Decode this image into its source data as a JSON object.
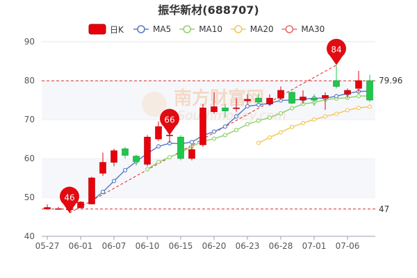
{
  "chart_data": {
    "type": "candlestick",
    "title_name": "振华新材",
    "title_code": "(688707)",
    "ylim": [
      40,
      90
    ],
    "yticks": [
      40,
      50,
      60,
      70,
      80,
      90
    ],
    "x_tick_labels": [
      "05-27",
      "06-01",
      "06-07",
      "06-10",
      "06-15",
      "06-20",
      "06-23",
      "06-28",
      "07-01",
      "07-06"
    ],
    "legend": [
      {
        "name": "日K",
        "color": "#e8000b"
      },
      {
        "name": "MA5",
        "color": "#5b7dc4"
      },
      {
        "name": "MA10",
        "color": "#91d26a"
      },
      {
        "name": "MA20",
        "color": "#f5c65a"
      },
      {
        "name": "MA30",
        "color": "#ef6b6b"
      }
    ],
    "candles": [
      {
        "date": "05-27",
        "open": 47.0,
        "close": 47.4,
        "high": 48.2,
        "low": 46.9
      },
      {
        "date": "05-30",
        "open": 47.0,
        "close": 47.1,
        "high": 47.6,
        "low": 46.9
      },
      {
        "date": "05-31",
        "open": 46.8,
        "close": 47.0,
        "high": 47.1,
        "low": 46.0
      },
      {
        "date": "06-01",
        "open": 47.3,
        "close": 48.8,
        "high": 49.0,
        "low": 47.2
      },
      {
        "date": "06-02",
        "open": 48.3,
        "close": 55.0,
        "high": 55.3,
        "low": 48.2
      },
      {
        "date": "06-06",
        "open": 56.2,
        "close": 59.0,
        "high": 61.5,
        "low": 55.5
      },
      {
        "date": "06-07",
        "open": 59.0,
        "close": 62.0,
        "high": 62.5,
        "low": 58.0
      },
      {
        "date": "06-08",
        "open": 62.5,
        "close": 60.8,
        "high": 63.0,
        "low": 60.0
      },
      {
        "date": "06-09",
        "open": 60.6,
        "close": 59.2,
        "high": 61.0,
        "low": 58.2
      },
      {
        "date": "06-10",
        "open": 58.5,
        "close": 65.5,
        "high": 66.0,
        "low": 58.0
      },
      {
        "date": "06-13",
        "open": 65.0,
        "close": 68.2,
        "high": 69.5,
        "low": 64.5
      },
      {
        "date": "06-14",
        "open": 66.0,
        "close": 66.0,
        "high": 66.5,
        "low": 64.0
      },
      {
        "date": "06-15",
        "open": 65.5,
        "close": 60.0,
        "high": 66.0,
        "low": 59.5
      },
      {
        "date": "06-16",
        "open": 60.0,
        "close": 62.3,
        "high": 63.5,
        "low": 59.5
      },
      {
        "date": "06-17",
        "open": 63.5,
        "close": 73.0,
        "high": 74.0,
        "low": 63.0
      },
      {
        "date": "06-20",
        "open": 72.0,
        "close": 73.3,
        "high": 77.0,
        "low": 71.5
      },
      {
        "date": "06-21",
        "open": 73.0,
        "close": 72.2,
        "high": 74.0,
        "low": 70.5
      },
      {
        "date": "06-22",
        "open": 72.8,
        "close": 73.0,
        "high": 75.5,
        "low": 72.0
      },
      {
        "date": "06-23",
        "open": 74.8,
        "close": 75.2,
        "high": 76.5,
        "low": 74.0
      },
      {
        "date": "06-24",
        "open": 75.5,
        "close": 74.5,
        "high": 76.5,
        "low": 74.0
      },
      {
        "date": "06-27",
        "open": 74.0,
        "close": 75.5,
        "high": 76.5,
        "low": 73.5
      },
      {
        "date": "06-28",
        "open": 75.5,
        "close": 77.5,
        "high": 78.5,
        "low": 75.0
      },
      {
        "date": "06-29",
        "open": 77.0,
        "close": 74.2,
        "high": 77.2,
        "low": 74.0
      },
      {
        "date": "06-30",
        "open": 75.0,
        "close": 75.8,
        "high": 77.5,
        "low": 74.0
      },
      {
        "date": "07-01",
        "open": 75.5,
        "close": 75.0,
        "high": 76.5,
        "low": 73.5
      },
      {
        "date": "07-04",
        "open": 75.5,
        "close": 76.2,
        "high": 77.0,
        "low": 72.5
      },
      {
        "date": "07-05",
        "open": 80.0,
        "close": 78.5,
        "high": 84.0,
        "low": 78.0
      },
      {
        "date": "07-06",
        "open": 76.5,
        "close": 77.5,
        "high": 78.0,
        "low": 75.5
      },
      {
        "date": "07-07",
        "open": 78.0,
        "close": 80.0,
        "high": 82.5,
        "low": 77.0
      },
      {
        "date": "07-08",
        "open": 80.0,
        "close": 75.0,
        "high": 81.5,
        "low": 74.5
      }
    ],
    "ma5": [
      null,
      null,
      null,
      null,
      49.1,
      51.4,
      54.2,
      57.0,
      59.2,
      61.3,
      63.1,
      63.9,
      63.8,
      64.2,
      65.9,
      66.9,
      68.2,
      70.8,
      73.4,
      73.8,
      74.2,
      74.9,
      75.0,
      75.2,
      75.5,
      75.5,
      76.0,
      76.7,
      77.2,
      77.3
    ],
    "ma10": [
      null,
      null,
      null,
      null,
      null,
      null,
      null,
      null,
      null,
      57.2,
      59.1,
      60.3,
      61.5,
      63.1,
      64.4,
      65.1,
      66.0,
      67.3,
      68.8,
      69.7,
      70.5,
      71.6,
      72.9,
      74.0,
      74.4,
      75.1,
      75.4,
      75.6,
      76.0,
      76.1
    ],
    "ma20": [
      null,
      null,
      null,
      null,
      null,
      null,
      null,
      null,
      null,
      null,
      null,
      null,
      null,
      null,
      null,
      null,
      null,
      null,
      null,
      64.0,
      65.4,
      66.7,
      68.1,
      69.1,
      70.0,
      70.8,
      71.5,
      72.4,
      73.0,
      73.3
    ],
    "annotations": {
      "max": {
        "value": 84,
        "label": "84",
        "index": 26
      },
      "min": {
        "value": 46,
        "label": "46",
        "index": 2
      },
      "mid": {
        "value": 66,
        "label": "66",
        "index": 11
      },
      "max_line": {
        "value": 79.96,
        "label": "79.96"
      },
      "min_line": {
        "value": 47,
        "label": "47"
      }
    },
    "up_color": "#e8000b",
    "down_color": "#1fc74a",
    "watermark_text": "南方财富网",
    "watermark_sub": "Southmoney.com"
  }
}
